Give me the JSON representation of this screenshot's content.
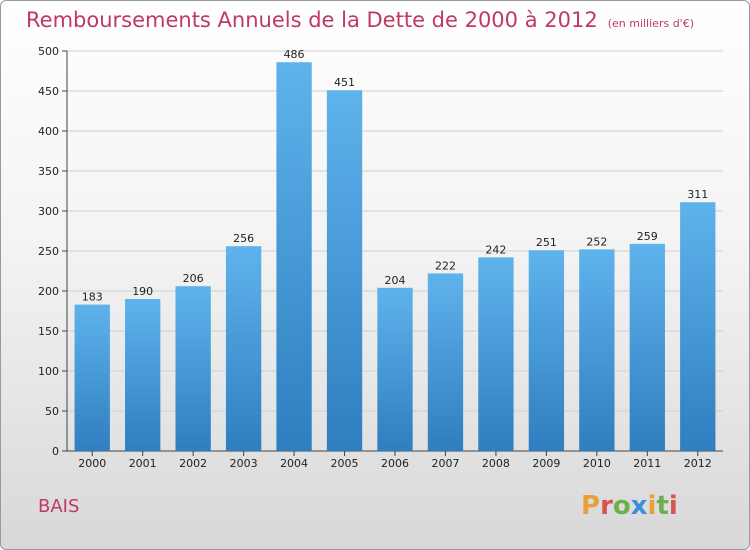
{
  "header": {
    "title": "Remboursements Annuels de la Dette de 2000 à 2012",
    "subtitle": "(en milliers d'€)"
  },
  "footer": {
    "commune": "BAIS",
    "logo": "Proxiti",
    "logo_colors": [
      "#e8a13a",
      "#d9534f",
      "#6ab04c",
      "#3b8fd9",
      "#e8a13a",
      "#6ab04c",
      "#d9534f"
    ]
  },
  "colors": {
    "bar_top": "#5fb3ec",
    "bar_bottom": "#2f7ec0",
    "title": "#c0395f"
  },
  "chart_data": {
    "type": "bar",
    "title": "Remboursements Annuels de la Dette de 2000 à 2012",
    "xlabel": "",
    "ylabel": "",
    "categories": [
      "2000",
      "2001",
      "2002",
      "2003",
      "2004",
      "2005",
      "2006",
      "2007",
      "2008",
      "2009",
      "2010",
      "2011",
      "2012"
    ],
    "values": [
      183,
      190,
      206,
      256,
      486,
      451,
      204,
      222,
      242,
      251,
      252,
      259,
      311
    ],
    "ylim": [
      0,
      500
    ],
    "yticks": [
      0,
      50,
      100,
      150,
      200,
      250,
      300,
      350,
      400,
      450,
      500
    ],
    "grid": true
  }
}
